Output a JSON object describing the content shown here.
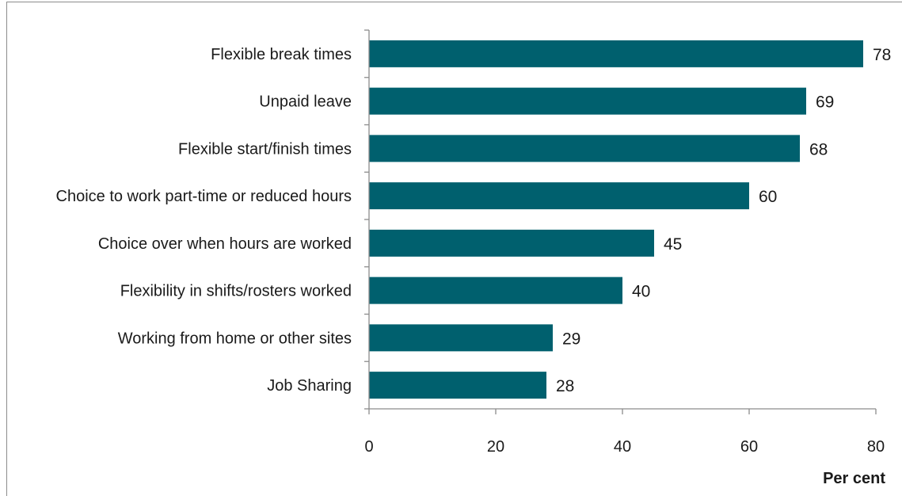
{
  "chart_data": {
    "type": "bar",
    "orientation": "horizontal",
    "categories": [
      "Flexible break times",
      "Unpaid leave",
      "Flexible start/finish times",
      "Choice to work part-time or reduced hours",
      "Choice over when hours are worked",
      "Flexibility in shifts/rosters worked",
      "Working from home or other sites",
      "Job Sharing"
    ],
    "values": [
      78,
      69,
      68,
      60,
      45,
      40,
      29,
      28
    ],
    "data_labels": [
      "78",
      "69",
      "68",
      "60",
      "45",
      "40",
      "29",
      "28"
    ],
    "title": "",
    "xlabel": "Per cent",
    "ylabel": "",
    "xlim": [
      0,
      80
    ],
    "x_ticks": [
      0,
      20,
      40,
      60,
      80
    ],
    "x_tick_labels": [
      "0",
      "20",
      "40",
      "60",
      "80"
    ],
    "grid": false,
    "legend": "none",
    "bar_color": "#00606e"
  }
}
